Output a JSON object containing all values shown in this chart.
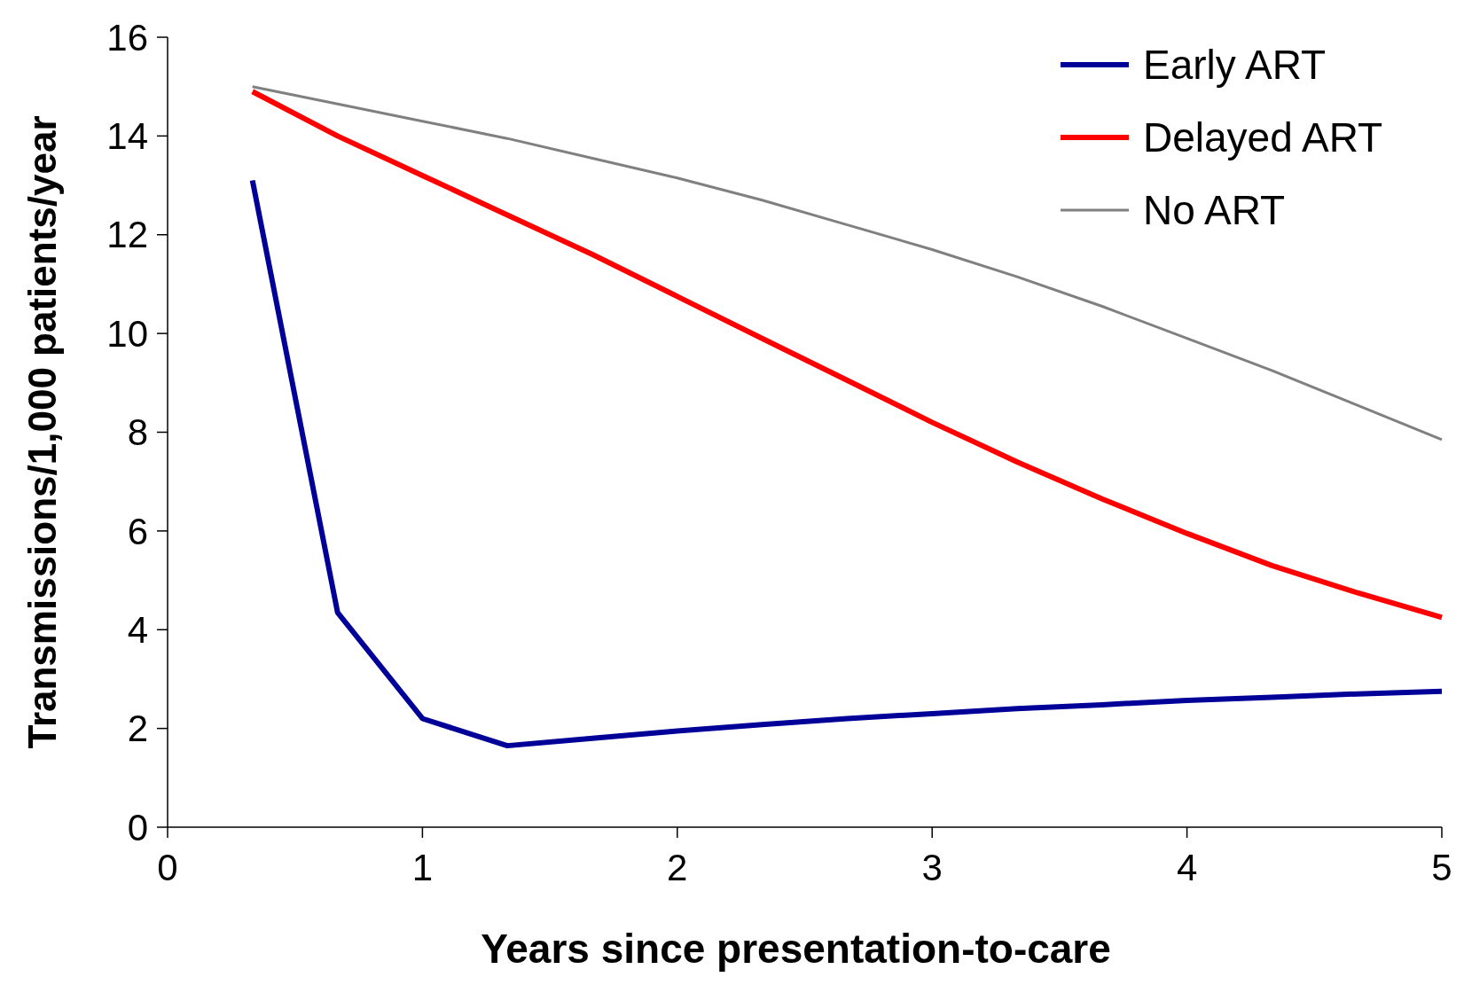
{
  "chart_data": {
    "type": "line",
    "xlabel": "Years since presentation-to-care",
    "ylabel": "Transmissions/1,000 patients/year",
    "x": [
      0.333,
      0.667,
      1,
      1.333,
      1.667,
      2,
      2.333,
      2.667,
      3,
      3.333,
      3.667,
      4,
      4.333,
      4.667,
      5
    ],
    "xlim": [
      0,
      5
    ],
    "xticks": [
      0,
      1,
      2,
      3,
      4,
      5
    ],
    "ylim": [
      0,
      16
    ],
    "yticks": [
      0,
      2,
      4,
      6,
      8,
      10,
      12,
      14,
      16
    ],
    "grid": false,
    "legend": "top right",
    "marker": "none",
    "line_style": "solid",
    "series": [
      {
        "name": "Early ART",
        "color": "#000099",
        "values": [
          13.1,
          4.35,
          2.2,
          1.65,
          1.8,
          1.95,
          2.08,
          2.2,
          2.3,
          2.4,
          2.48,
          2.57,
          2.63,
          2.7,
          2.75
        ]
      },
      {
        "name": "Delayed ART",
        "color": "#ff0000",
        "values": [
          14.9,
          14.0,
          13.2,
          12.4,
          11.6,
          10.75,
          9.9,
          9.05,
          8.2,
          7.4,
          6.65,
          5.95,
          5.3,
          4.75,
          4.25
        ]
      },
      {
        "name": "No ART",
        "color": "#808080",
        "values": [
          15.0,
          14.65,
          14.3,
          13.95,
          13.55,
          13.15,
          12.7,
          12.2,
          11.7,
          11.15,
          10.55,
          9.9,
          9.25,
          8.55,
          7.85
        ]
      }
    ]
  }
}
